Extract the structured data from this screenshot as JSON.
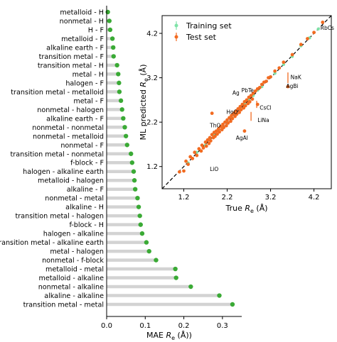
{
  "chart_data": [
    {
      "type": "lollipop",
      "orientation": "horizontal",
      "xlabel": "MAE R_e (Å)",
      "xlabel_main": "MAE ",
      "xlabel_italic": "R",
      "xlabel_sub": "e",
      "xlabel_unit": " (Å))",
      "xlim": [
        0,
        0.35
      ],
      "xticks": [
        0.0,
        0.1,
        0.2,
        0.3
      ],
      "xtick_labels": [
        "0.0",
        "0.1",
        "0.2",
        "0.3"
      ],
      "color": "#3aaa35",
      "stem_color": "#d3d3d3",
      "categories": [
        "metalloid - H",
        "nonmetal - H",
        "H - F",
        "metalloid - F",
        "alkaline earth - F",
        "transition metal - F",
        "transition metal - H",
        "metal - H",
        "halogen - F",
        "transition metal - metalloid",
        "metal - F",
        "nonmetal - halogen",
        "alkaline earth - F",
        "nonmetal - nonmetal",
        "nonmetal - metalloid",
        "nonmetal - F",
        "transition metal - nonmetal",
        "f-block - F",
        "halogen - alkaline earth",
        "metalloid - halogen",
        "alkaline - F",
        "nonmetal - metal",
        "alkaline - H",
        "transition metal - halogen",
        "f-block - H",
        "halogen - alkaline",
        "transition metal - alkaline earth",
        "metal - halogen",
        "nonmetal - f-block",
        "metalloid - metal",
        "metalloid - alkaline",
        "nonmetal - alkaline",
        "alkaline - alkaline",
        "transition metal - metal"
      ],
      "values": [
        0.003,
        0.007,
        0.009,
        0.015,
        0.017,
        0.018,
        0.027,
        0.03,
        0.032,
        0.033,
        0.037,
        0.04,
        0.043,
        0.047,
        0.05,
        0.053,
        0.063,
        0.066,
        0.07,
        0.072,
        0.074,
        0.08,
        0.083,
        0.086,
        0.088,
        0.092,
        0.103,
        0.11,
        0.128,
        0.178,
        0.18,
        0.218,
        0.292,
        0.326
      ]
    },
    {
      "type": "scatter",
      "xlabel": "True R_e (Å)",
      "xlabel_main": "True ",
      "xlabel_italic": "R",
      "xlabel_sub": "e",
      "xlabel_unit": " (Å)",
      "ylabel": "ML predicted R_e (Å)",
      "ylabel_main": "ML predicted ",
      "ylabel_italic": "R",
      "ylabel_sub": "e",
      "ylabel_unit": " (Å)",
      "xlim": [
        0.7,
        4.6
      ],
      "ylim": [
        0.7,
        4.6
      ],
      "xticks": [
        1.2,
        2.2,
        3.2,
        4.2
      ],
      "xtick_labels": [
        "1.2",
        "2.2",
        "3.2",
        "4.2"
      ],
      "yticks": [
        1.2,
        2.2,
        3.2,
        4.2
      ],
      "ytick_labels": [
        "1.2",
        "2.2",
        "3.2",
        "4.2"
      ],
      "diagonal": true,
      "legend_position": "top-left",
      "series": [
        {
          "name": "Training set",
          "color": "#7fe3a8",
          "points": [
            [
              1.3,
              1.28
            ],
            [
              1.5,
              1.52
            ],
            [
              1.7,
              1.68
            ],
            [
              1.8,
              1.83
            ],
            [
              1.9,
              1.9
            ],
            [
              2.0,
              2.02
            ],
            [
              2.1,
              2.08
            ],
            [
              2.2,
              2.22
            ],
            [
              2.3,
              2.32
            ],
            [
              2.4,
              2.38
            ],
            [
              2.5,
              2.5
            ],
            [
              2.6,
              2.62
            ],
            [
              2.7,
              2.7
            ],
            [
              2.8,
              2.8
            ],
            [
              2.9,
              2.92
            ],
            [
              3.0,
              3.0
            ],
            [
              3.3,
              3.3
            ],
            [
              3.5,
              3.5
            ],
            [
              3.7,
              3.68
            ],
            [
              3.9,
              3.92
            ],
            [
              4.1,
              4.1
            ],
            [
              4.3,
              4.3
            ]
          ]
        },
        {
          "name": "Test set",
          "color": "#f26b21",
          "points": [
            [
              1.1,
              1.08
            ],
            [
              1.2,
              1.1
            ],
            [
              1.25,
              1.32
            ],
            [
              1.3,
              1.25
            ],
            [
              1.35,
              1.42
            ],
            [
              1.4,
              1.38
            ],
            [
              1.45,
              1.52
            ],
            [
              1.5,
              1.45
            ],
            [
              1.55,
              1.6
            ],
            [
              1.6,
              1.55
            ],
            [
              1.62,
              1.68
            ],
            [
              1.65,
              1.62
            ],
            [
              1.7,
              1.75
            ],
            [
              1.72,
              1.66
            ],
            [
              1.75,
              1.8
            ],
            [
              1.78,
              1.72
            ],
            [
              1.8,
              1.85
            ],
            [
              1.82,
              1.78
            ],
            [
              1.85,
              1.92
            ],
            [
              1.88,
              1.85
            ],
            [
              1.9,
              1.97
            ],
            [
              1.92,
              1.88
            ],
            [
              1.95,
              2.0
            ],
            [
              1.97,
              1.93
            ],
            [
              2.0,
              2.05
            ],
            [
              2.02,
              1.98
            ],
            [
              2.05,
              2.1
            ],
            [
              2.08,
              2.03
            ],
            [
              2.1,
              2.15
            ],
            [
              2.12,
              2.08
            ],
            [
              2.15,
              2.2
            ],
            [
              2.18,
              2.12
            ],
            [
              2.2,
              2.25
            ],
            [
              2.22,
              2.18
            ],
            [
              2.25,
              2.3
            ],
            [
              2.28,
              2.22
            ],
            [
              2.3,
              2.35
            ],
            [
              2.32,
              2.28
            ],
            [
              2.35,
              2.4
            ],
            [
              2.38,
              2.33
            ],
            [
              2.4,
              2.45
            ],
            [
              2.42,
              2.38
            ],
            [
              2.45,
              2.5
            ],
            [
              2.48,
              2.42
            ],
            [
              2.5,
              2.55
            ],
            [
              2.52,
              2.48
            ],
            [
              2.55,
              2.6
            ],
            [
              2.58,
              2.52
            ],
            [
              2.6,
              2.66
            ],
            [
              2.62,
              2.57
            ],
            [
              2.65,
              2.7
            ],
            [
              2.68,
              2.62
            ],
            [
              2.7,
              2.76
            ],
            [
              2.72,
              2.66
            ],
            [
              2.75,
              2.8
            ],
            [
              2.78,
              2.72
            ],
            [
              2.8,
              2.85
            ],
            [
              2.85,
              2.9
            ],
            [
              2.9,
              2.95
            ],
            [
              2.95,
              2.98
            ],
            [
              3.0,
              3.05
            ],
            [
              3.05,
              3.1
            ],
            [
              3.1,
              3.12
            ],
            [
              3.15,
              3.2
            ],
            [
              3.2,
              3.22
            ],
            [
              3.3,
              3.35
            ],
            [
              3.4,
              3.42
            ],
            [
              3.5,
              3.55
            ],
            [
              3.7,
              3.72
            ],
            [
              3.9,
              3.95
            ],
            [
              4.05,
              4.08
            ],
            [
              4.2,
              4.22
            ],
            [
              4.4,
              4.45
            ],
            [
              1.85,
              2.4
            ],
            [
              2.6,
              2.0
            ],
            [
              2.9,
              2.6
            ],
            [
              3.6,
              3.0
            ]
          ]
        }
      ],
      "error_bars": [
        {
          "x": 3.6,
          "y": 3.2,
          "err": 0.12
        },
        {
          "x": 2.75,
          "y": 2.33,
          "err": 0.1
        },
        {
          "x": 2.88,
          "y": 2.6,
          "err": 0.08
        }
      ],
      "annotations": [
        {
          "text": "RbCs",
          "x": 4.35,
          "y": 4.28
        },
        {
          "text": "NaK",
          "x": 3.66,
          "y": 3.17
        },
        {
          "text": "AgBi",
          "x": 3.56,
          "y": 2.97
        },
        {
          "text": "PbTe",
          "x": 2.53,
          "y": 2.87
        },
        {
          "text": "Ag",
          "x": 2.32,
          "y": 2.82
        },
        {
          "text": "CsCl",
          "x": 2.95,
          "y": 2.48
        },
        {
          "text": "LiNa",
          "x": 2.9,
          "y": 2.2
        },
        {
          "text": "HoO",
          "x": 2.18,
          "y": 2.39
        },
        {
          "text": "ThO",
          "x": 1.8,
          "y": 2.08
        },
        {
          "text": "AgAl",
          "x": 2.4,
          "y": 1.8
        },
        {
          "text": "LiO",
          "x": 1.8,
          "y": 1.1
        }
      ]
    }
  ]
}
